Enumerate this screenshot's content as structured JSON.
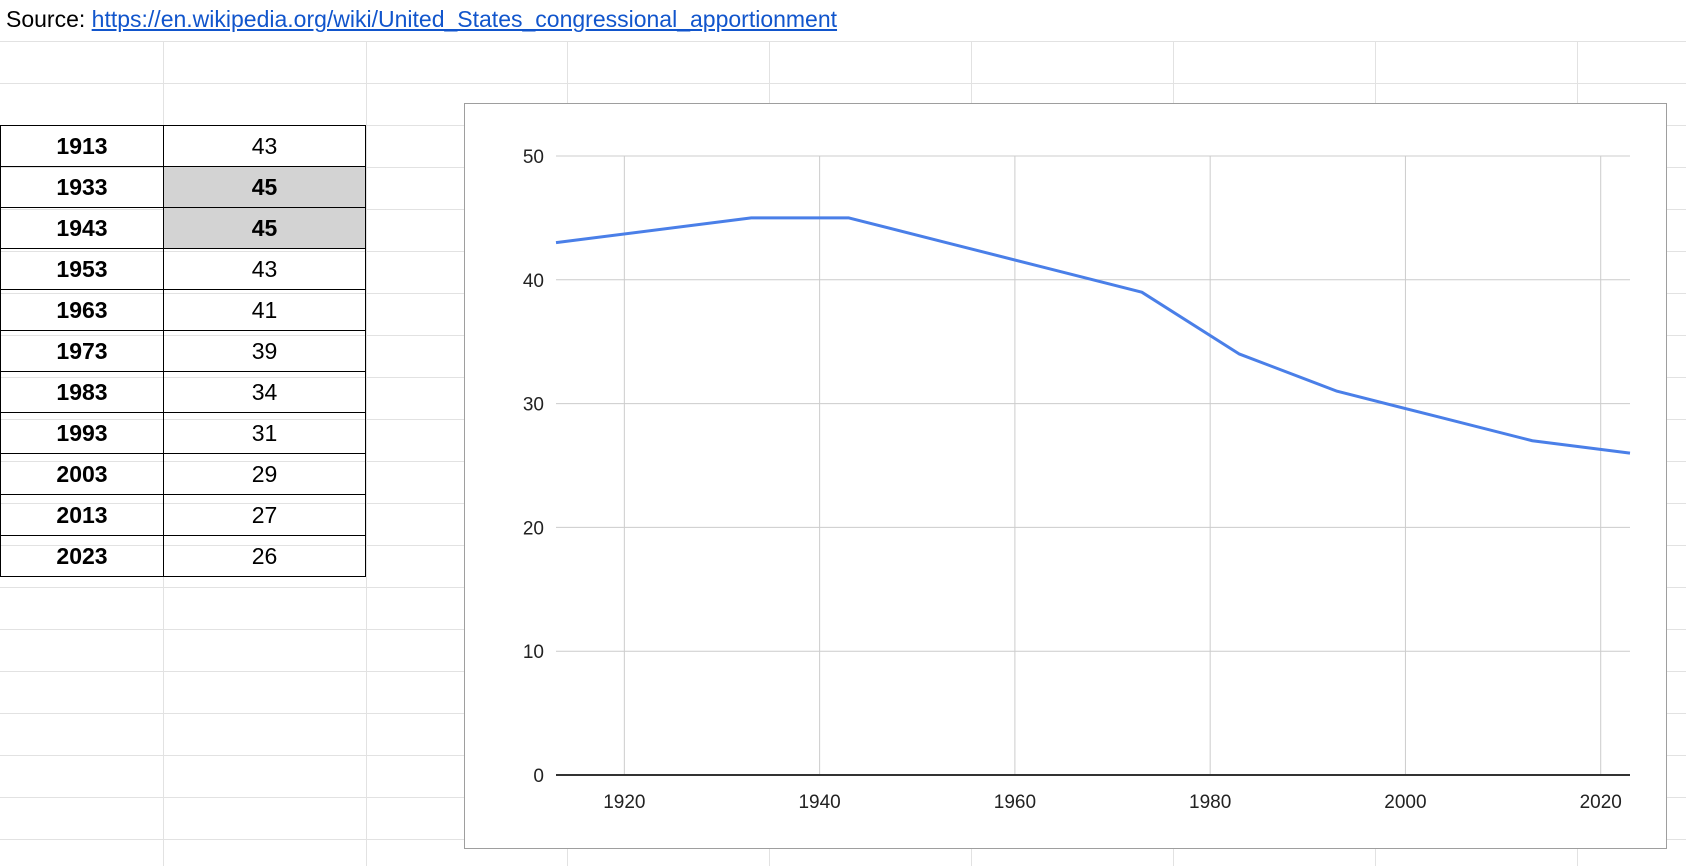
{
  "source": {
    "label": "Source:",
    "link": "https://en.wikipedia.org/wiki/United_States_congressional_apportionment"
  },
  "table": {
    "rows": [
      {
        "year": "1913",
        "value": "43",
        "highlighted": false
      },
      {
        "year": "1933",
        "value": "45",
        "highlighted": true
      },
      {
        "year": "1943",
        "value": "45",
        "highlighted": true
      },
      {
        "year": "1953",
        "value": "43",
        "highlighted": false
      },
      {
        "year": "1963",
        "value": "41",
        "highlighted": false
      },
      {
        "year": "1973",
        "value": "39",
        "highlighted": false
      },
      {
        "year": "1983",
        "value": "34",
        "highlighted": false
      },
      {
        "year": "1993",
        "value": "31",
        "highlighted": false
      },
      {
        "year": "2003",
        "value": "29",
        "highlighted": false
      },
      {
        "year": "2013",
        "value": "27",
        "highlighted": false
      },
      {
        "year": "2023",
        "value": "26",
        "highlighted": false
      }
    ],
    "highlight_color": "#d3d3d3"
  },
  "chart_data": {
    "type": "line",
    "x": [
      1913,
      1933,
      1943,
      1953,
      1963,
      1973,
      1983,
      1993,
      2003,
      2013,
      2023
    ],
    "series": [
      {
        "values": [
          43,
          45,
          45,
          43,
          41,
          39,
          34,
          31,
          29,
          27,
          26
        ],
        "color": "#4a7fe8"
      }
    ],
    "xlim": [
      1913,
      2023
    ],
    "ylim": [
      0,
      50
    ],
    "xticks": [
      "1920",
      "1940",
      "1960",
      "1980",
      "2000",
      "2020"
    ],
    "yticks": [
      "0",
      "10",
      "20",
      "30",
      "40",
      "50"
    ],
    "grid": true,
    "title": "",
    "xlabel": "",
    "ylabel": ""
  }
}
